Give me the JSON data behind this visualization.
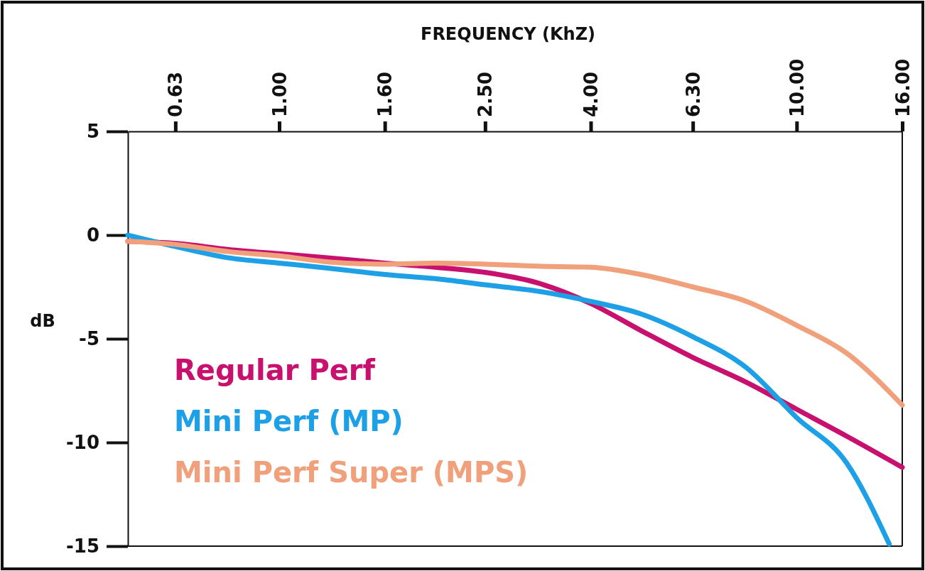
{
  "chart_data": {
    "type": "line",
    "xlabel": "FREQUENCY (KhZ)",
    "ylabel": "dB",
    "log": "x",
    "legend": "bottom left",
    "line_style": "solid",
    "xlim": [
      0.51,
      16
    ],
    "ylim": [
      -15,
      5
    ],
    "xticks": [
      {
        "value": 0.63,
        "label": "0.63"
      },
      {
        "value": 1,
        "label": "1.00"
      },
      {
        "value": 1.6,
        "label": "1.60"
      },
      {
        "value": 2.5,
        "label": "2.50"
      },
      {
        "value": 4,
        "label": "4.00"
      },
      {
        "value": 6.3,
        "label": "6.30"
      },
      {
        "value": 10,
        "label": "10.00"
      },
      {
        "value": 16,
        "label": "16.00"
      }
    ],
    "yticks": [
      5,
      0,
      -5,
      -10,
      -15
    ],
    "series": [
      {
        "name": "Regular Perf",
        "color": "#c8106e",
        "x": [
          0.51,
          0.63,
          0.8,
          1,
          1.25,
          1.6,
          2,
          2.5,
          3.15,
          4,
          5,
          6.3,
          8,
          10,
          12.5,
          16
        ],
        "values": [
          -0.3,
          -0.4,
          -0.7,
          -0.9,
          -1.1,
          -1.35,
          -1.55,
          -1.8,
          -2.3,
          -3.3,
          -4.6,
          -5.9,
          -7.1,
          -8.4,
          -9.7,
          -11.2
        ]
      },
      {
        "name": "Mini Perf (MP)",
        "color": "#1ea0e6",
        "x": [
          0.51,
          0.63,
          0.8,
          1,
          1.25,
          1.6,
          2,
          2.5,
          3.15,
          4,
          5,
          6.3,
          8,
          10,
          12.5,
          15.1
        ],
        "values": [
          0,
          -0.55,
          -1.1,
          -1.35,
          -1.6,
          -1.9,
          -2.1,
          -2.4,
          -2.7,
          -3.2,
          -3.8,
          -4.9,
          -6.4,
          -8.8,
          -11,
          -14.9
        ]
      },
      {
        "name": "Mini Perf Super (MPS)",
        "color": "#f0a07a",
        "x": [
          0.51,
          0.63,
          0.8,
          1,
          1.25,
          1.6,
          2,
          2.5,
          3.15,
          4,
          5,
          6.3,
          8,
          10,
          12.5,
          16
        ],
        "values": [
          -0.3,
          -0.45,
          -0.8,
          -1,
          -1.3,
          -1.4,
          -1.35,
          -1.4,
          -1.5,
          -1.55,
          -1.9,
          -2.5,
          -3.2,
          -4.35,
          -5.7,
          -8.2
        ]
      }
    ]
  }
}
